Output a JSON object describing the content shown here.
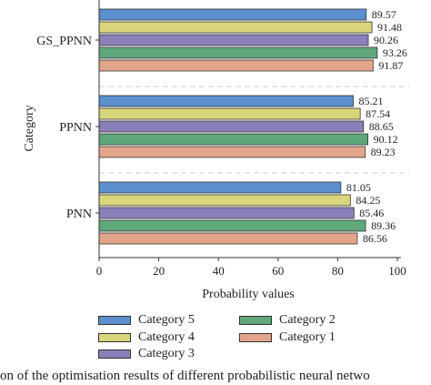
{
  "chart_data": {
    "type": "bar",
    "orientation": "horizontal",
    "categories": [
      "GS_PPNN",
      "PPNN",
      "PNN"
    ],
    "series": [
      {
        "name": "Category 5",
        "values": [
          89.57,
          85.21,
          81.05
        ],
        "color": "#5b8fce"
      },
      {
        "name": "Category 4",
        "values": [
          91.48,
          87.54,
          84.25
        ],
        "color": "#d9d57a"
      },
      {
        "name": "Category 3",
        "values": [
          90.26,
          88.65,
          85.46
        ],
        "color": "#8a7fb8"
      },
      {
        "name": "Category 2",
        "values": [
          93.26,
          90.12,
          89.36
        ],
        "color": "#5fa87c"
      },
      {
        "name": "Category 1",
        "values": [
          91.87,
          89.23,
          86.56
        ],
        "color": "#e3a58a"
      }
    ],
    "xlabel": "Probability values",
    "ylabel": "Category",
    "xlim": [
      0,
      100
    ],
    "xticks": [
      "0",
      "20",
      "40",
      "60",
      "80",
      "100"
    ],
    "legend_position": "bottom"
  },
  "caption": "on of the optimisation results of different probabilistic neural netwo"
}
